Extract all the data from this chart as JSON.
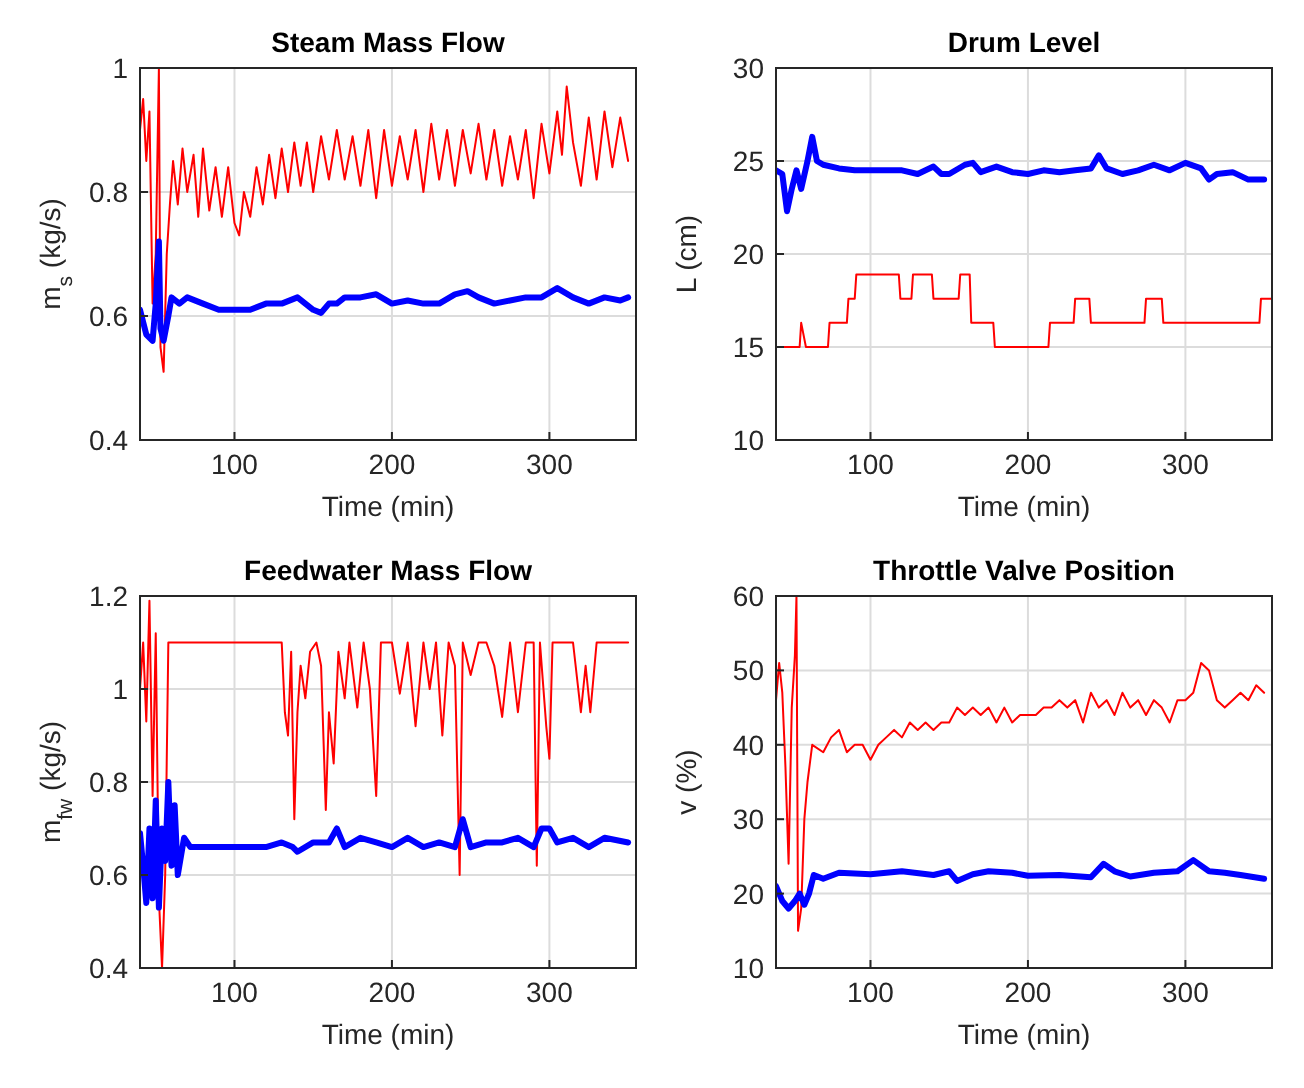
{
  "chart_data": [
    {
      "type": "line",
      "title": "Steam Mass Flow",
      "xlabel": "Time (min)",
      "ylabel": "m$_{s}$ (kg/s)",
      "xlim": [
        40,
        355
      ],
      "xticks": [
        100,
        200,
        300
      ],
      "ylim": [
        0.4,
        1
      ],
      "yticks": [
        0.4,
        0.6,
        0.8,
        1
      ],
      "grid": true,
      "series": [
        {
          "color": "#ff0000",
          "x": [
            40,
            42,
            44,
            46,
            48,
            50,
            52,
            53,
            55,
            57,
            59,
            61,
            64,
            67,
            70,
            74,
            77,
            80,
            84,
            88,
            92,
            96,
            100,
            103,
            106,
            110,
            114,
            118,
            122,
            126,
            130,
            134,
            138,
            142,
            146,
            150,
            155,
            160,
            165,
            170,
            175,
            180,
            185,
            190,
            195,
            200,
            205,
            210,
            215,
            220,
            225,
            230,
            235,
            240,
            245,
            250,
            255,
            260,
            265,
            270,
            275,
            280,
            285,
            290,
            295,
            300,
            305,
            308,
            311,
            315,
            320,
            325,
            330,
            335,
            340,
            345,
            350
          ],
          "values": [
            0.9,
            0.95,
            0.85,
            0.93,
            0.62,
            0.7,
            1.0,
            0.55,
            0.51,
            0.7,
            0.78,
            0.85,
            0.78,
            0.87,
            0.8,
            0.86,
            0.76,
            0.87,
            0.77,
            0.84,
            0.76,
            0.84,
            0.75,
            0.73,
            0.8,
            0.76,
            0.84,
            0.78,
            0.86,
            0.79,
            0.87,
            0.8,
            0.88,
            0.81,
            0.88,
            0.8,
            0.89,
            0.82,
            0.9,
            0.82,
            0.89,
            0.81,
            0.9,
            0.79,
            0.9,
            0.81,
            0.89,
            0.82,
            0.9,
            0.8,
            0.91,
            0.82,
            0.9,
            0.81,
            0.9,
            0.83,
            0.91,
            0.82,
            0.9,
            0.81,
            0.89,
            0.82,
            0.9,
            0.79,
            0.91,
            0.83,
            0.93,
            0.86,
            0.97,
            0.88,
            0.81,
            0.92,
            0.82,
            0.93,
            0.84,
            0.92,
            0.85
          ]
        },
        {
          "color": "#0000ff",
          "x": [
            40,
            44,
            48,
            50,
            52,
            53,
            55,
            58,
            60,
            65,
            70,
            80,
            90,
            100,
            110,
            120,
            130,
            140,
            150,
            155,
            160,
            165,
            170,
            180,
            190,
            200,
            210,
            220,
            230,
            240,
            248,
            255,
            265,
            275,
            285,
            295,
            305,
            315,
            325,
            335,
            345,
            350
          ],
          "values": [
            0.61,
            0.57,
            0.56,
            0.62,
            0.72,
            0.58,
            0.56,
            0.6,
            0.63,
            0.62,
            0.63,
            0.62,
            0.61,
            0.61,
            0.61,
            0.62,
            0.62,
            0.63,
            0.61,
            0.605,
            0.62,
            0.62,
            0.63,
            0.63,
            0.635,
            0.62,
            0.625,
            0.62,
            0.62,
            0.635,
            0.64,
            0.63,
            0.62,
            0.625,
            0.63,
            0.63,
            0.645,
            0.63,
            0.62,
            0.63,
            0.625,
            0.63
          ]
        }
      ]
    },
    {
      "type": "line",
      "title": "Drum Level",
      "xlabel": "Time (min)",
      "ylabel": "L (cm)",
      "xlim": [
        40,
        355
      ],
      "xticks": [
        100,
        200,
        300
      ],
      "ylim": [
        10,
        30
      ],
      "yticks": [
        10,
        15,
        20,
        25,
        30
      ],
      "grid": true,
      "series": [
        {
          "color": "#ff0000",
          "x": [
            40,
            55,
            56,
            59,
            73,
            74,
            85,
            86,
            90,
            91,
            118,
            119,
            126,
            127,
            139,
            140,
            156,
            157,
            163,
            164,
            178,
            179,
            213,
            214,
            229,
            230,
            239,
            240,
            274,
            275,
            285,
            286,
            347,
            348,
            355
          ],
          "values": [
            15,
            15,
            16.3,
            15,
            15,
            16.3,
            16.3,
            17.6,
            17.6,
            18.9,
            18.9,
            17.6,
            17.6,
            18.9,
            18.9,
            17.6,
            17.6,
            18.9,
            18.9,
            16.3,
            16.3,
            15,
            15,
            16.3,
            16.3,
            17.6,
            17.6,
            16.3,
            16.3,
            17.6,
            17.6,
            16.3,
            16.3,
            17.6,
            17.6
          ]
        },
        {
          "color": "#0000ff",
          "x": [
            40,
            44,
            47,
            50,
            53,
            56,
            60,
            63,
            66,
            70,
            80,
            90,
            100,
            110,
            120,
            130,
            140,
            145,
            150,
            160,
            165,
            170,
            180,
            190,
            200,
            210,
            220,
            230,
            240,
            245,
            250,
            260,
            270,
            280,
            290,
            300,
            310,
            315,
            320,
            330,
            340,
            350
          ],
          "values": [
            24.5,
            24.3,
            22.3,
            23.5,
            24.5,
            23.5,
            25,
            26.3,
            25,
            24.8,
            24.6,
            24.5,
            24.5,
            24.5,
            24.5,
            24.3,
            24.7,
            24.3,
            24.3,
            24.8,
            24.9,
            24.4,
            24.7,
            24.4,
            24.3,
            24.5,
            24.4,
            24.5,
            24.6,
            25.3,
            24.6,
            24.3,
            24.5,
            24.8,
            24.5,
            24.9,
            24.6,
            24,
            24.3,
            24.4,
            24,
            24
          ]
        }
      ]
    },
    {
      "type": "line",
      "title": "Feedwater Mass Flow",
      "xlabel": "Time (min)",
      "ylabel": "m$_{fw}$ (kg/s)",
      "xlim": [
        40,
        355
      ],
      "xticks": [
        100,
        200,
        300
      ],
      "ylim": [
        0.4,
        1.2
      ],
      "yticks": [
        0.4,
        0.6,
        0.8,
        1,
        1.2
      ],
      "grid": true,
      "series": [
        {
          "color": "#ff0000",
          "x": [
            40,
            42,
            44,
            46,
            48,
            50,
            52,
            54,
            56,
            58,
            60,
            130,
            132,
            134,
            136,
            138,
            140,
            142,
            145,
            148,
            152,
            155,
            158,
            160,
            163,
            166,
            170,
            173,
            178,
            182,
            186,
            190,
            193,
            200,
            205,
            210,
            215,
            220,
            224,
            228,
            232,
            236,
            240,
            243,
            245,
            250,
            255,
            260,
            265,
            270,
            275,
            280,
            285,
            290,
            292,
            294,
            298,
            300,
            302,
            315,
            320,
            323,
            326,
            330,
            350
          ],
          "values": [
            1.0,
            1.1,
            0.93,
            1.19,
            0.77,
            1.12,
            0.55,
            0.4,
            0.6,
            1.1,
            1.1,
            1.1,
            0.95,
            0.9,
            1.08,
            0.72,
            0.95,
            1.05,
            0.98,
            1.08,
            1.1,
            1.05,
            0.74,
            0.95,
            0.84,
            1.08,
            0.98,
            1.1,
            0.96,
            1.1,
            1.0,
            0.77,
            1.1,
            1.1,
            0.99,
            1.1,
            0.92,
            1.1,
            1.0,
            1.1,
            0.9,
            1.1,
            1.05,
            0.6,
            1.1,
            1.03,
            1.1,
            1.1,
            1.05,
            0.94,
            1.1,
            0.95,
            1.1,
            1.1,
            0.62,
            1.1,
            0.92,
            0.85,
            1.1,
            1.1,
            0.95,
            1.05,
            0.95,
            1.1,
            1.1
          ]
        },
        {
          "color": "#0000ff",
          "x": [
            40,
            42,
            44,
            46,
            48,
            50,
            52,
            54,
            56,
            58,
            60,
            62,
            64,
            68,
            72,
            80,
            100,
            120,
            130,
            137,
            140,
            150,
            160,
            165,
            170,
            180,
            190,
            200,
            210,
            220,
            230,
            240,
            245,
            250,
            260,
            270,
            280,
            290,
            295,
            300,
            305,
            315,
            325,
            335,
            350
          ],
          "values": [
            0.69,
            0.62,
            0.54,
            0.7,
            0.55,
            0.76,
            0.53,
            0.7,
            0.63,
            0.8,
            0.62,
            0.75,
            0.6,
            0.68,
            0.66,
            0.66,
            0.66,
            0.66,
            0.67,
            0.66,
            0.65,
            0.67,
            0.67,
            0.7,
            0.66,
            0.68,
            0.67,
            0.66,
            0.68,
            0.66,
            0.67,
            0.66,
            0.72,
            0.66,
            0.67,
            0.67,
            0.68,
            0.66,
            0.7,
            0.7,
            0.67,
            0.68,
            0.66,
            0.68,
            0.67
          ]
        }
      ]
    },
    {
      "type": "line",
      "title": "Throttle Valve Position",
      "xlabel": "Time (min)",
      "ylabel": "v (%)",
      "xlim": [
        40,
        355
      ],
      "xticks": [
        100,
        200,
        300
      ],
      "ylim": [
        10,
        60
      ],
      "yticks": [
        10,
        20,
        30,
        40,
        50,
        60
      ],
      "grid": true,
      "series": [
        {
          "color": "#ff0000",
          "x": [
            40,
            42,
            44,
            46,
            48,
            50,
            52,
            53,
            54,
            56,
            58,
            60,
            63,
            70,
            75,
            80,
            85,
            90,
            95,
            100,
            105,
            110,
            115,
            120,
            125,
            130,
            135,
            140,
            145,
            150,
            155,
            160,
            165,
            170,
            175,
            180,
            185,
            190,
            195,
            200,
            205,
            210,
            215,
            220,
            225,
            230,
            235,
            240,
            245,
            250,
            255,
            260,
            265,
            270,
            275,
            280,
            285,
            290,
            295,
            300,
            305,
            310,
            315,
            320,
            325,
            330,
            335,
            340,
            345,
            350
          ],
          "values": [
            46,
            51,
            47,
            37,
            24,
            45,
            52,
            60,
            15,
            18,
            30,
            35,
            40,
            39,
            41,
            42,
            39,
            40,
            40,
            38,
            40,
            41,
            42,
            41,
            43,
            42,
            43,
            42,
            43,
            43,
            45,
            44,
            45,
            44,
            45,
            43,
            45,
            43,
            44,
            44,
            44,
            45,
            45,
            46,
            45,
            46,
            43,
            47,
            45,
            46,
            44,
            47,
            45,
            46,
            44,
            46,
            45,
            43,
            46,
            46,
            47,
            51,
            50,
            46,
            45,
            46,
            47,
            46,
            48,
            47
          ]
        },
        {
          "color": "#0000ff",
          "x": [
            40,
            44,
            48,
            52,
            55,
            58,
            61,
            64,
            70,
            80,
            100,
            120,
            140,
            150,
            155,
            165,
            175,
            190,
            200,
            220,
            240,
            248,
            255,
            265,
            280,
            295,
            305,
            315,
            325,
            335,
            350
          ],
          "values": [
            21,
            19,
            18,
            19,
            20,
            18.5,
            20,
            22.5,
            22,
            22.8,
            22.6,
            23,
            22.5,
            23,
            21.7,
            22.6,
            23,
            22.8,
            22.4,
            22.5,
            22.2,
            24,
            23,
            22.3,
            22.8,
            23,
            24.5,
            23,
            22.8,
            22.5,
            22
          ]
        }
      ]
    }
  ]
}
